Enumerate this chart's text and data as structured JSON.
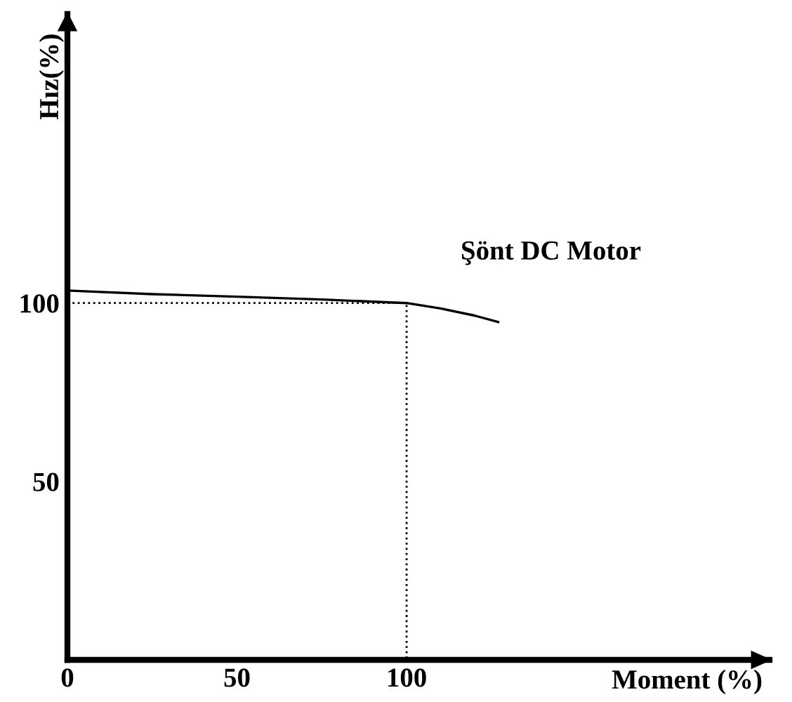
{
  "chart_data": {
    "type": "line",
    "xlabel": "Moment (%)",
    "ylabel": "Hız(%)",
    "xlim": [
      0,
      207
    ],
    "ylim": [
      0,
      181
    ],
    "xticks": [
      0,
      50,
      100
    ],
    "yticks": [
      50,
      100
    ],
    "grid": false,
    "legend": false,
    "series": [
      {
        "color": "#000000",
        "line_style": "solid",
        "x": [
          0,
          25,
          50,
          75,
          100,
          110,
          120,
          127
        ],
        "values": [
          103.5,
          102.5,
          101.8,
          101,
          100,
          98.5,
          96.5,
          94.7
        ]
      },
      {
        "color": "#000000",
        "line_style": "dotted",
        "x": [
          0,
          100,
          100
        ],
        "values": [
          100,
          100,
          0
        ]
      }
    ],
    "annotations": [
      "Şönt DC Motor"
    ]
  }
}
